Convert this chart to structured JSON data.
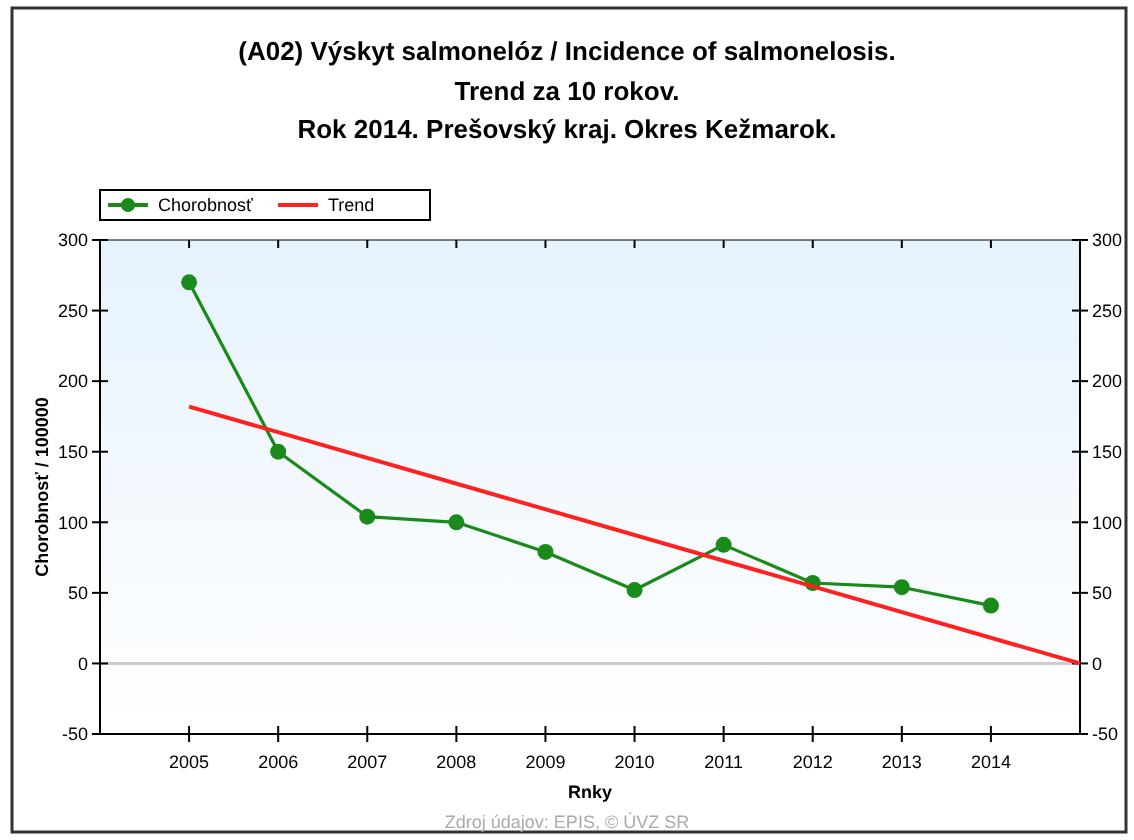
{
  "chart_data": {
    "type": "line",
    "title": "(A02) Výskyt salmonelóz / Incidence of salmonelosis.",
    "subtitle": "Trend za 10 rokov.\nRok 2014. Prešovský kraj. Okres Kežmarok.",
    "xlabel": "Rnky",
    "ylabel": "Chorobnosť / 100000",
    "x": [
      2005,
      2006,
      2007,
      2008,
      2009,
      2010,
      2011,
      2012,
      2013,
      2014
    ],
    "series": [
      {
        "name": "Chorobnosť",
        "color": "#1a8a1a",
        "values": [
          270,
          150,
          104,
          100,
          79,
          52,
          84,
          57,
          54,
          41
        ],
        "marker": "circle"
      },
      {
        "name": "Trend",
        "color": "#ff2020",
        "x": [
          2005,
          2015
        ],
        "values": [
          182,
          0
        ],
        "marker": "none"
      }
    ],
    "xlim": [
      2004,
      2015
    ],
    "xticks": [
      2005,
      2006,
      2007,
      2008,
      2009,
      2010,
      2011,
      2012,
      2013,
      2014
    ],
    "ylim": [
      -50,
      300
    ],
    "yticks": [
      -50,
      0,
      50,
      100,
      150,
      200,
      250,
      300
    ],
    "y2lim": [
      -50,
      300
    ],
    "y2ticks": [
      -50,
      0,
      50,
      100,
      150,
      200,
      250,
      300
    ],
    "ref_lines": [
      {
        "axis": "y",
        "value": 0,
        "color": "#cccccc"
      }
    ],
    "legend": "top left",
    "grid": false,
    "annotations": [
      "Zdroj údajov: EPIS, © ÚVZ SR"
    ]
  }
}
